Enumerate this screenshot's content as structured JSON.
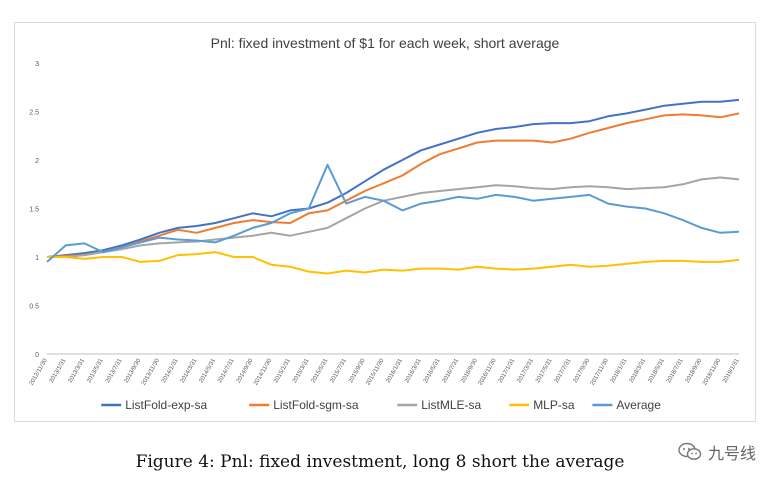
{
  "caption": "Figure 4: Pnl: fixed investment, long 8 short the average",
  "watermark": {
    "text": "九号线",
    "icon": "wechat-icon"
  },
  "chart_data": {
    "type": "line",
    "title": "Pnl: fixed investment of $1 for each week, short average",
    "xlabel": "",
    "ylabel": "",
    "ylim": [
      0,
      3
    ],
    "yticks": [
      "0",
      "0.5",
      "1",
      "1.5",
      "2",
      "2.5",
      "3"
    ],
    "grid": false,
    "legend": "bottom",
    "x": [
      "2012/11/30",
      "2013/1/31",
      "2013/3/31",
      "2013/5/31",
      "2013/7/31",
      "2013/9/30",
      "2013/11/30",
      "2014/1/31",
      "2014/3/31",
      "2014/5/31",
      "2014/7/31",
      "2014/9/30",
      "2014/11/30",
      "2015/1/31",
      "2015/3/31",
      "2015/5/31",
      "2015/7/31",
      "2015/9/30",
      "2015/11/30",
      "2016/1/31",
      "2016/3/31",
      "2016/5/31",
      "2016/7/31",
      "2016/9/30",
      "2016/11/30",
      "2017/1/31",
      "2017/3/31",
      "2017/5/31",
      "2017/7/31",
      "2017/9/30",
      "2017/11/30",
      "2018/1/31",
      "2018/3/31",
      "2018/5/31",
      "2018/7/31",
      "2018/9/30",
      "2018/11/30",
      "2019/1/31"
    ],
    "series": [
      {
        "name": "ListFold-exp-sa",
        "color": "#4472c4",
        "values": [
          1.0,
          1.02,
          1.04,
          1.07,
          1.12,
          1.18,
          1.25,
          1.3,
          1.32,
          1.35,
          1.4,
          1.45,
          1.42,
          1.48,
          1.5,
          1.56,
          1.66,
          1.78,
          1.9,
          2.0,
          2.1,
          2.16,
          2.22,
          2.28,
          2.32,
          2.34,
          2.37,
          2.38,
          2.38,
          2.4,
          2.45,
          2.48,
          2.52,
          2.56,
          2.58,
          2.6,
          2.6,
          2.62
        ]
      },
      {
        "name": "ListFold-sgm-sa",
        "color": "#ed7d31",
        "values": [
          1.0,
          1.01,
          1.02,
          1.05,
          1.1,
          1.16,
          1.22,
          1.28,
          1.25,
          1.3,
          1.35,
          1.38,
          1.36,
          1.35,
          1.45,
          1.48,
          1.58,
          1.68,
          1.76,
          1.84,
          1.96,
          2.06,
          2.12,
          2.18,
          2.2,
          2.2,
          2.2,
          2.18,
          2.22,
          2.28,
          2.33,
          2.38,
          2.42,
          2.46,
          2.47,
          2.46,
          2.44,
          2.48
        ]
      },
      {
        "name": "ListMLE-sa",
        "color": "#a5a5a5",
        "values": [
          1.0,
          1.0,
          1.02,
          1.05,
          1.08,
          1.12,
          1.14,
          1.15,
          1.16,
          1.18,
          1.2,
          1.22,
          1.25,
          1.22,
          1.26,
          1.3,
          1.4,
          1.5,
          1.58,
          1.62,
          1.66,
          1.68,
          1.7,
          1.72,
          1.74,
          1.73,
          1.71,
          1.7,
          1.72,
          1.73,
          1.72,
          1.7,
          1.71,
          1.72,
          1.75,
          1.8,
          1.82,
          1.8
        ]
      },
      {
        "name": "MLP-sa",
        "color": "#ffc000",
        "values": [
          1.0,
          1.0,
          0.98,
          1.0,
          1.0,
          0.95,
          0.96,
          1.02,
          1.03,
          1.05,
          1.0,
          1.0,
          0.92,
          0.9,
          0.85,
          0.83,
          0.86,
          0.84,
          0.87,
          0.86,
          0.88,
          0.88,
          0.87,
          0.9,
          0.88,
          0.87,
          0.88,
          0.9,
          0.92,
          0.9,
          0.91,
          0.93,
          0.95,
          0.96,
          0.96,
          0.95,
          0.95,
          0.97
        ]
      },
      {
        "name": "Average",
        "color": "#5b9bd5",
        "values": [
          0.95,
          1.12,
          1.14,
          1.05,
          1.1,
          1.15,
          1.2,
          1.18,
          1.17,
          1.15,
          1.22,
          1.3,
          1.35,
          1.45,
          1.5,
          1.95,
          1.55,
          1.62,
          1.58,
          1.48,
          1.55,
          1.58,
          1.62,
          1.6,
          1.64,
          1.62,
          1.58,
          1.6,
          1.62,
          1.64,
          1.55,
          1.52,
          1.5,
          1.45,
          1.38,
          1.3,
          1.25,
          1.26
        ]
      }
    ]
  }
}
